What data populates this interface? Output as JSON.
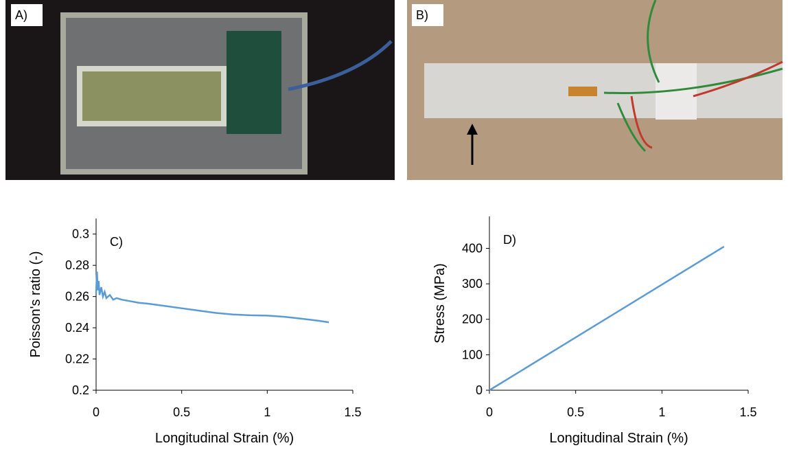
{
  "photos": [
    {
      "label": "A)"
    },
    {
      "label": "B)"
    }
  ],
  "chart_data": [
    {
      "type": "line",
      "annotation": "C)",
      "x_label": "Longitudinal Strain (%)",
      "y_label": "Poisson's ratio (-)",
      "color": "#5b9bd5",
      "x": [
        0,
        0.005,
        0.01,
        0.015,
        0.02,
        0.03,
        0.04,
        0.05,
        0.06,
        0.08,
        0.1,
        0.12,
        0.15,
        0.2,
        0.25,
        0.3,
        0.4,
        0.5,
        0.6,
        0.7,
        0.8,
        0.9,
        1.0,
        1.1,
        1.2,
        1.3,
        1.36
      ],
      "values": [
        0.262,
        0.276,
        0.264,
        0.27,
        0.261,
        0.266,
        0.26,
        0.263,
        0.259,
        0.261,
        0.258,
        0.259,
        0.258,
        0.257,
        0.256,
        0.2555,
        0.254,
        0.2525,
        0.251,
        0.2495,
        0.2485,
        0.248,
        0.2478,
        0.247,
        0.2458,
        0.2445,
        0.2435
      ],
      "xlim": [
        0,
        1.5
      ],
      "xticks": [
        0,
        0.5,
        1,
        1.5
      ],
      "ylim": [
        0.2,
        0.31
      ],
      "yticks": [
        0.2,
        0.22,
        0.24,
        0.26,
        0.28,
        0.3
      ]
    },
    {
      "type": "line",
      "annotation": "D)",
      "x_label": "Longitudinal Strain (%)",
      "y_label": "Stress (MPa)",
      "color": "#5b9bd5",
      "x": [
        0,
        1.36
      ],
      "values": [
        0,
        405
      ],
      "xlim": [
        0,
        1.5
      ],
      "xticks": [
        0,
        0.5,
        1,
        1.5
      ],
      "ylim": [
        0,
        490
      ],
      "yticks": [
        0,
        100,
        200,
        300,
        400
      ]
    }
  ]
}
